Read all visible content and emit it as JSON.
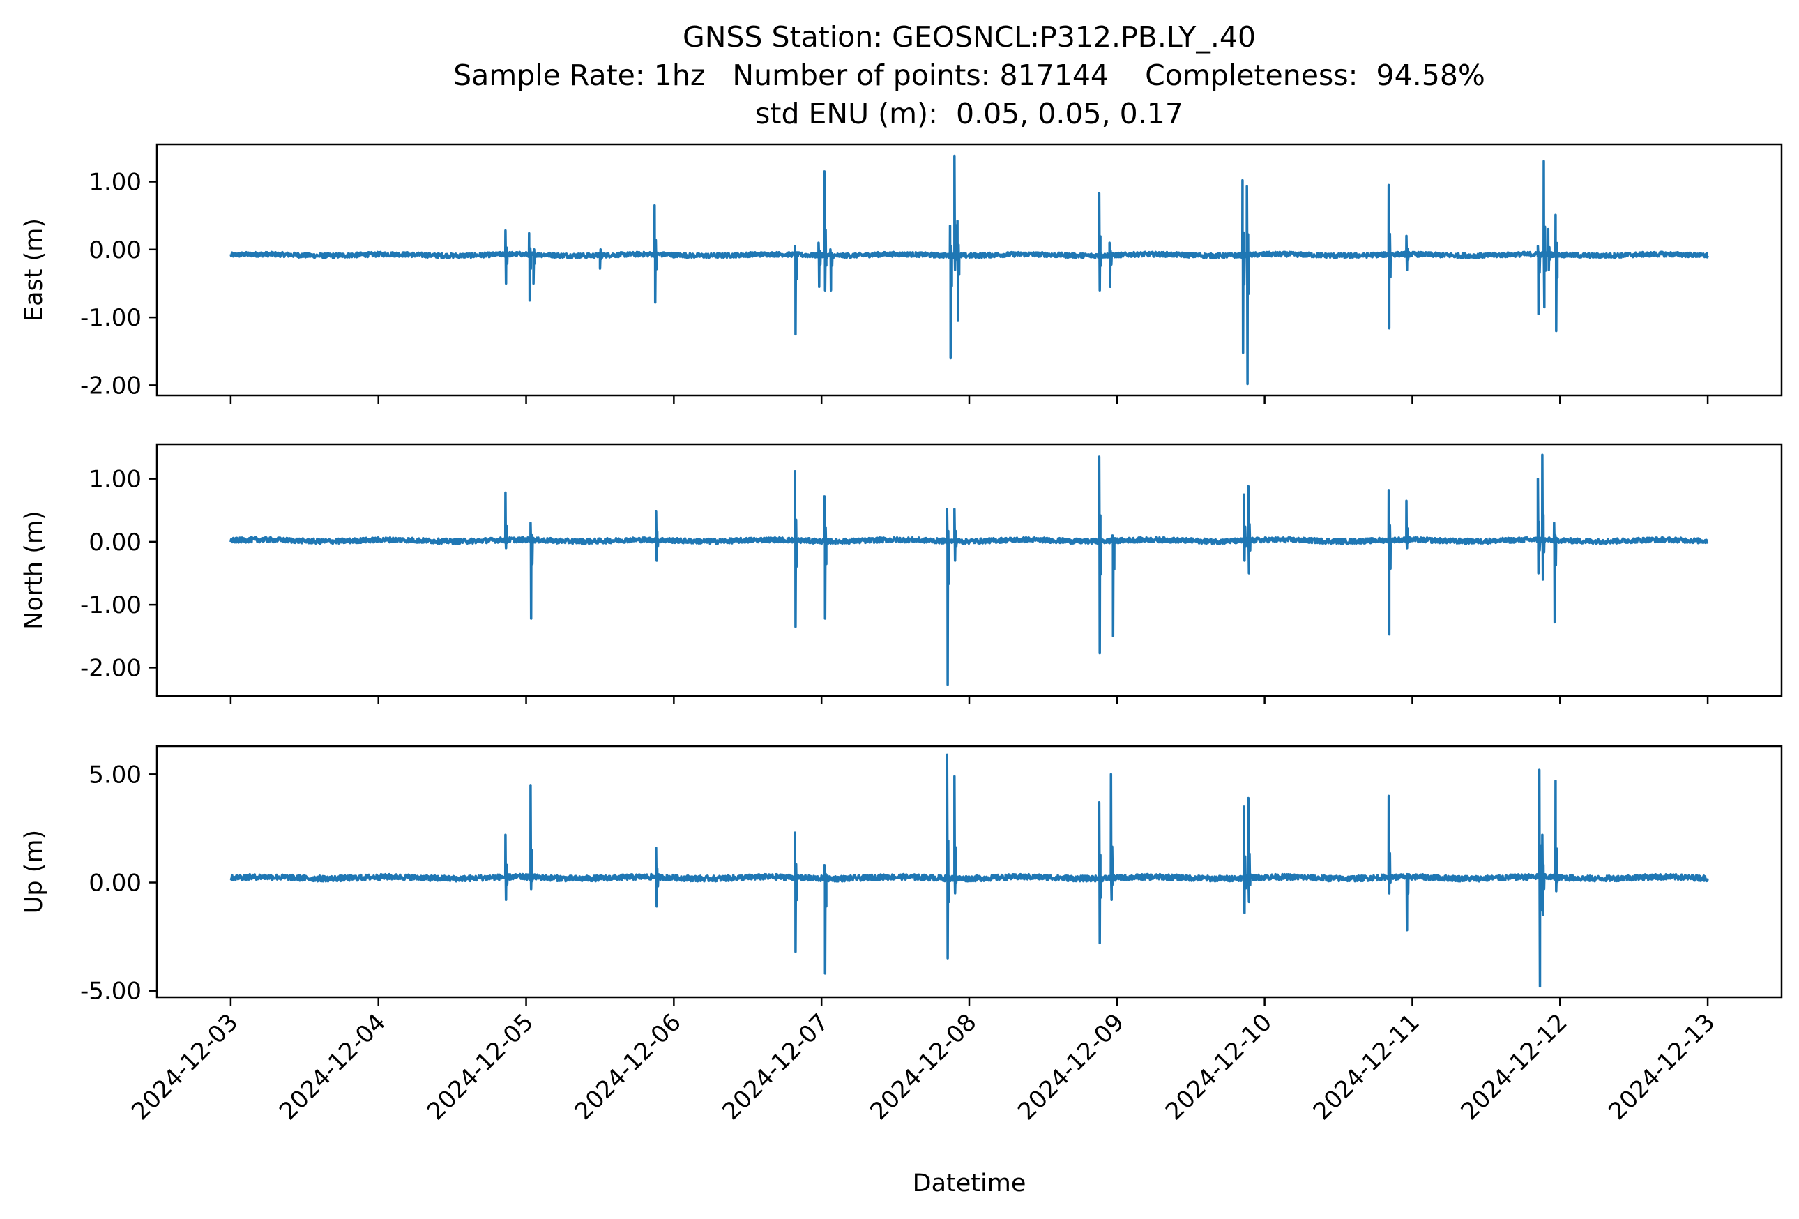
{
  "title": {
    "line1": "GNSS Station: GEOSNCL:P312.PB.LY_.40",
    "line2": "Sample Rate: 1hz   Number of points: 817144    Completeness:  94.58%",
    "line3": "std ENU (m):  0.05, 0.05, 0.17"
  },
  "colors": {
    "series": "#1f77b4",
    "axes": "#000000"
  },
  "chart_data": [
    {
      "type": "line",
      "ylabel": "East (m)",
      "xlabel": "",
      "ylim": [
        -2.15,
        1.55
      ],
      "yticks": [
        1.0,
        0.0,
        -1.0,
        -2.0
      ],
      "ytick_labels": [
        "1.00",
        "0.00",
        "-1.00",
        "-2.00"
      ],
      "xlim": [
        -0.5,
        10.5
      ],
      "baseline": -0.08,
      "noise": 0.035,
      "spikes": [
        [
          1.86,
          0.28,
          -0.5
        ],
        [
          2.02,
          0.24,
          -0.75
        ],
        [
          2.05,
          -0.5,
          0.0
        ],
        [
          2.5,
          -0.28,
          0.0
        ],
        [
          2.87,
          0.65,
          -0.78
        ],
        [
          3.82,
          0.05,
          -1.25
        ],
        [
          3.98,
          0.1,
          -0.55
        ],
        [
          4.02,
          1.15,
          -0.6
        ],
        [
          4.06,
          0.0,
          -0.6
        ],
        [
          4.87,
          0.35,
          -1.6
        ],
        [
          4.9,
          1.38,
          -0.3
        ],
        [
          4.92,
          0.42,
          -1.05
        ],
        [
          5.88,
          0.83,
          -0.6
        ],
        [
          5.95,
          0.1,
          -0.55
        ],
        [
          6.85,
          1.02,
          -1.52
        ],
        [
          6.88,
          0.93,
          -1.98
        ],
        [
          7.84,
          0.95,
          -1.16
        ],
        [
          7.96,
          0.2,
          -0.3
        ],
        [
          8.85,
          0.05,
          -0.95
        ],
        [
          8.89,
          1.3,
          -0.85
        ],
        [
          8.92,
          0.3,
          -0.3
        ],
        [
          8.97,
          0.51,
          -1.2
        ]
      ]
    },
    {
      "type": "line",
      "ylabel": "North (m)",
      "xlabel": "",
      "ylim": [
        -2.45,
        1.55
      ],
      "yticks": [
        1.0,
        0.0,
        -1.0,
        -2.0
      ],
      "ytick_labels": [
        "1.00",
        "0.00",
        "-1.00",
        "-2.00"
      ],
      "xlim": [
        -0.5,
        10.5
      ],
      "baseline": 0.02,
      "noise": 0.04,
      "spikes": [
        [
          1.86,
          0.78,
          -0.1
        ],
        [
          2.03,
          0.3,
          -1.22
        ],
        [
          2.88,
          0.48,
          -0.3
        ],
        [
          3.82,
          1.12,
          -1.35
        ],
        [
          4.02,
          0.72,
          -1.22
        ],
        [
          4.85,
          0.52,
          -2.27
        ],
        [
          4.9,
          0.52,
          -0.3
        ],
        [
          5.88,
          1.35,
          -1.77
        ],
        [
          5.97,
          0.1,
          -1.5
        ],
        [
          6.86,
          0.75,
          -0.3
        ],
        [
          6.89,
          0.88,
          -0.5
        ],
        [
          7.84,
          0.82,
          -1.47
        ],
        [
          7.96,
          0.65,
          -0.1
        ],
        [
          8.85,
          1.0,
          -0.5
        ],
        [
          8.88,
          1.38,
          -0.6
        ],
        [
          8.96,
          0.3,
          -1.28
        ]
      ]
    },
    {
      "type": "line",
      "ylabel": "Up (m)",
      "xlabel": "Datetime",
      "ylim": [
        -5.3,
        6.3
      ],
      "yticks": [
        5.0,
        0.0,
        -5.0
      ],
      "ytick_labels": [
        "5.00",
        "0.00",
        "-5.00"
      ],
      "xlim": [
        -0.5,
        10.5
      ],
      "baseline": 0.22,
      "noise": 0.13,
      "spikes": [
        [
          1.86,
          2.2,
          -0.8
        ],
        [
          2.03,
          4.5,
          -0.3
        ],
        [
          2.88,
          1.6,
          -1.1
        ],
        [
          3.82,
          2.3,
          -3.2
        ],
        [
          4.02,
          0.8,
          -4.2
        ],
        [
          4.85,
          5.9,
          -3.5
        ],
        [
          4.9,
          4.9,
          -0.5
        ],
        [
          5.88,
          3.7,
          -2.8
        ],
        [
          5.96,
          5.0,
          -0.8
        ],
        [
          6.86,
          3.5,
          -1.4
        ],
        [
          6.89,
          3.9,
          -0.9
        ],
        [
          7.84,
          4.0,
          -0.5
        ],
        [
          7.96,
          0.3,
          -2.2
        ],
        [
          8.86,
          5.2,
          -4.8
        ],
        [
          8.88,
          2.2,
          -1.5
        ],
        [
          8.97,
          4.7,
          -0.4
        ]
      ],
      "x_categories": [
        "2024-12-03",
        "2024-12-04",
        "2024-12-05",
        "2024-12-06",
        "2024-12-07",
        "2024-12-08",
        "2024-12-09",
        "2024-12-10",
        "2024-12-11",
        "2024-12-12",
        "2024-12-13"
      ]
    }
  ]
}
